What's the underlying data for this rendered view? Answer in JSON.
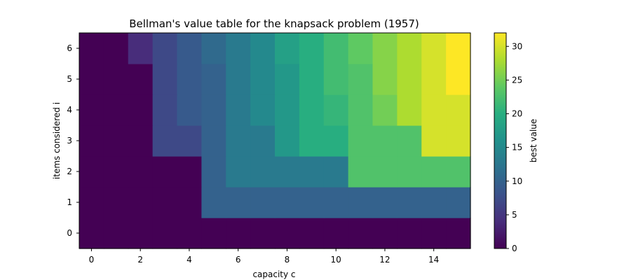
{
  "chart_data": {
    "type": "heatmap",
    "title": "Bellman's value table for the knapsack problem (1957)",
    "xlabel": "capacity c",
    "ylabel": "items considered i",
    "x_ticks": [
      0,
      2,
      4,
      6,
      8,
      10,
      12,
      14
    ],
    "y_ticks": [
      0,
      1,
      2,
      3,
      4,
      5,
      6
    ],
    "x_range": [
      0,
      15
    ],
    "y_range": [
      0,
      6
    ],
    "origin": "lower",
    "colormap": "viridis",
    "colorbar": {
      "label": "best value",
      "range": [
        0,
        32
      ],
      "ticks": [
        0,
        5,
        10,
        15,
        20,
        25,
        30
      ]
    },
    "rows": [
      {
        "i": 0,
        "values": [
          0,
          0,
          0,
          0,
          0,
          0,
          0,
          0,
          0,
          0,
          0,
          0,
          0,
          0,
          0,
          0
        ]
      },
      {
        "i": 1,
        "values": [
          0,
          0,
          0,
          0,
          0,
          10,
          10,
          10,
          10,
          10,
          10,
          10,
          10,
          10,
          10,
          10
        ]
      },
      {
        "i": 2,
        "values": [
          0,
          0,
          0,
          0,
          0,
          10,
          13,
          13,
          13,
          13,
          13,
          23,
          23,
          23,
          23,
          23
        ]
      },
      {
        "i": 3,
        "values": [
          0,
          0,
          0,
          7,
          7,
          10,
          13,
          13,
          17,
          20,
          20,
          23,
          23,
          23,
          30,
          30
        ]
      },
      {
        "i": 4,
        "values": [
          0,
          0,
          0,
          7,
          9,
          10,
          13,
          15,
          17,
          20,
          21,
          23,
          25,
          28,
          30,
          30
        ]
      },
      {
        "i": 5,
        "values": [
          0,
          0,
          0,
          7,
          9,
          10,
          13,
          15,
          17,
          20,
          22,
          23,
          26,
          28,
          30,
          32
        ]
      },
      {
        "i": 6,
        "values": [
          0,
          0,
          4,
          7,
          9,
          11,
          13,
          15,
          18,
          20,
          22,
          24,
          26,
          28,
          30,
          32
        ]
      }
    ]
  }
}
